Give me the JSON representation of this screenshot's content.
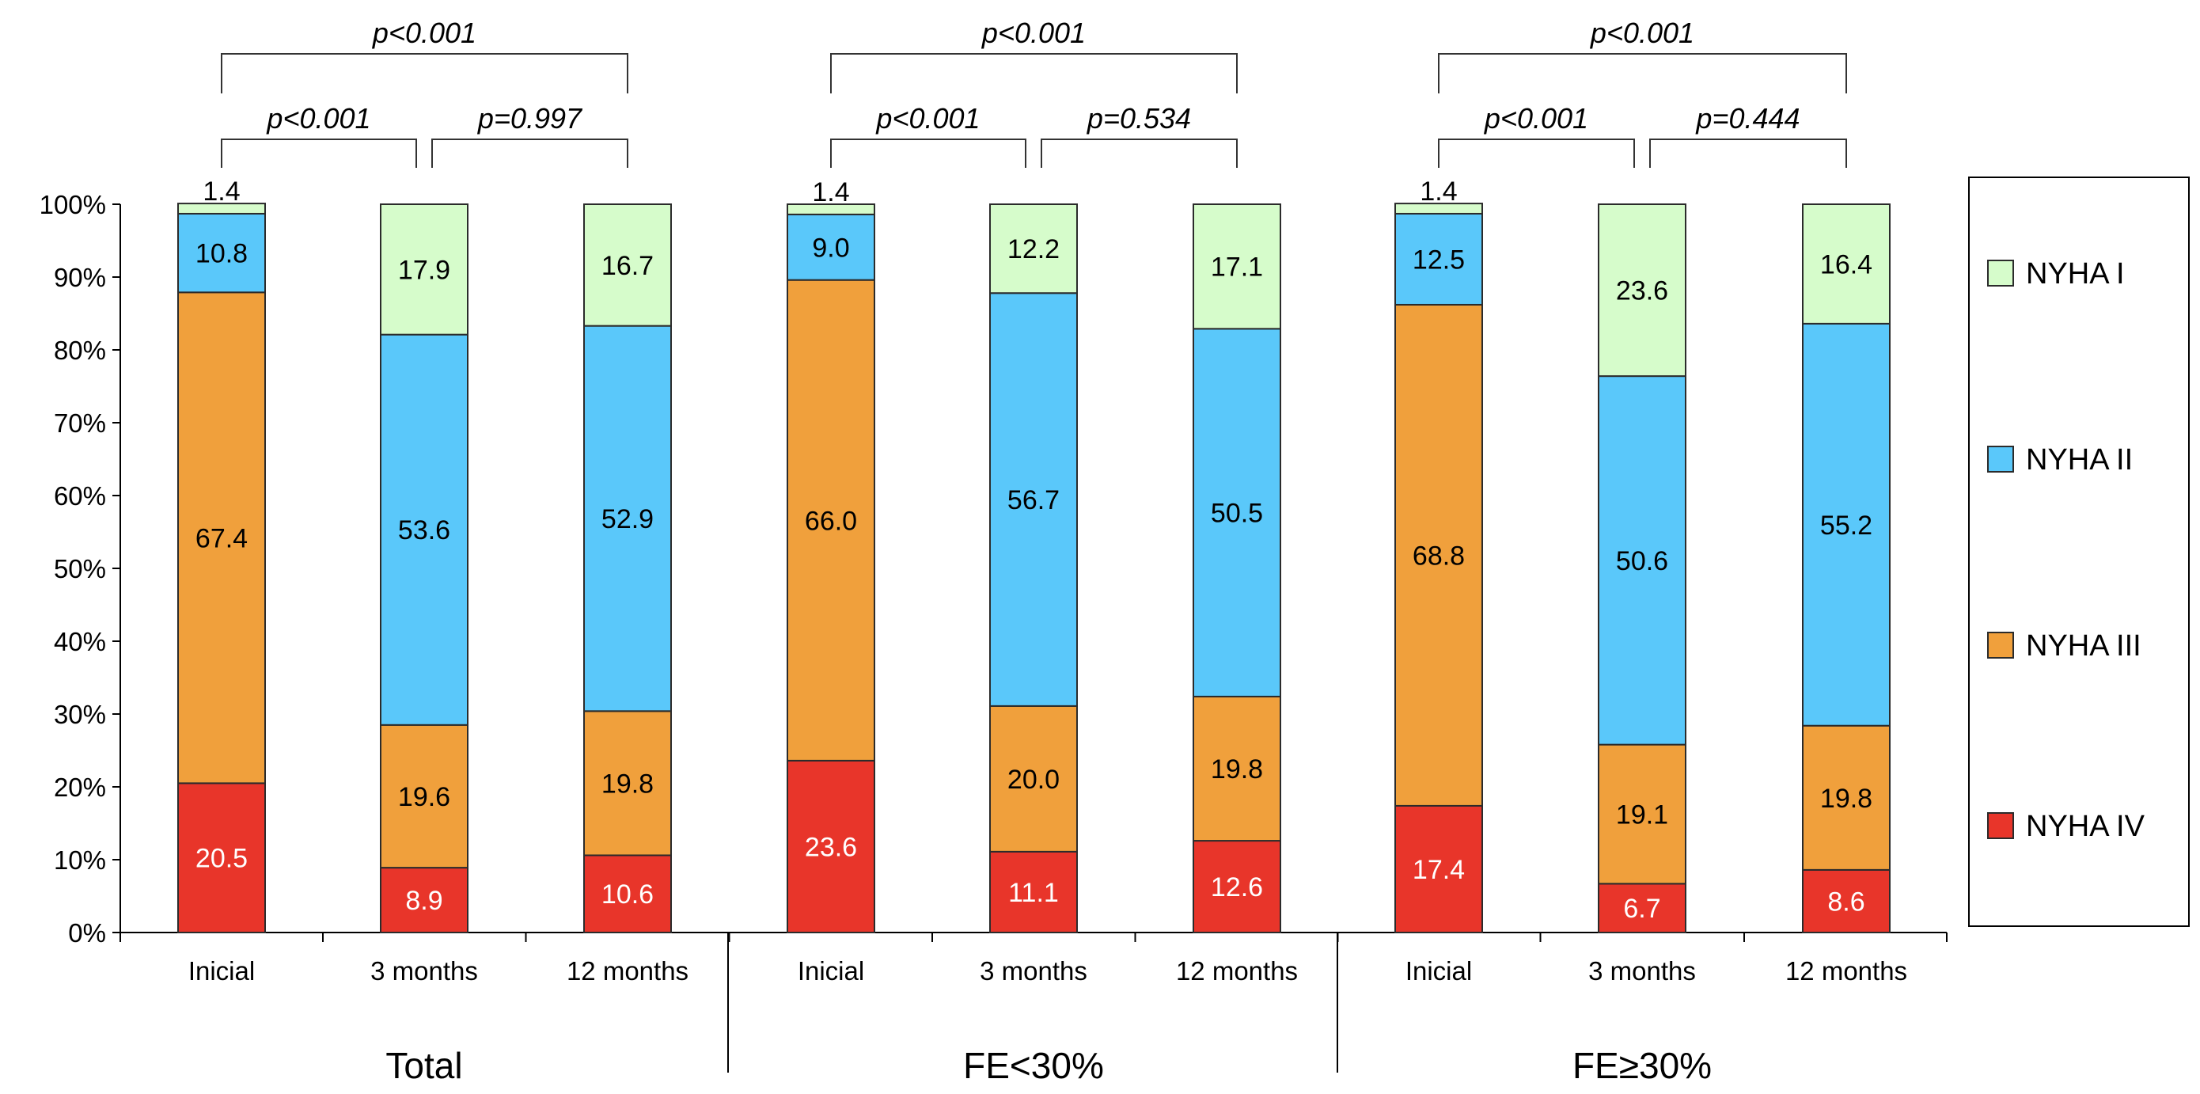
{
  "chart_data": {
    "type": "bar",
    "stacked": true,
    "ylim": [
      0,
      100
    ],
    "yticks": [
      "0%",
      "10%",
      "20%",
      "30%",
      "40%",
      "50%",
      "60%",
      "70%",
      "80%",
      "90%",
      "100%"
    ],
    "grid": false,
    "legend_position": "right",
    "categories": [
      "Inicial",
      "3 months",
      "12 months",
      "Inicial",
      "3 months",
      "12 months",
      "Inicial",
      "3 months",
      "12 months"
    ],
    "groups": [
      "Total",
      "FE<30%",
      "FE≥30%"
    ],
    "series": [
      {
        "name": "NYHA IV",
        "color": "#e8352a",
        "label_color": "#ffffff",
        "values": [
          20.5,
          8.9,
          10.6,
          23.6,
          11.1,
          12.6,
          17.4,
          6.7,
          8.6
        ]
      },
      {
        "name": "NYHA III",
        "color": "#f0a03c",
        "label_color": "#000000",
        "values": [
          67.4,
          19.6,
          19.8,
          66.0,
          20.0,
          19.8,
          68.8,
          19.1,
          19.8
        ]
      },
      {
        "name": "NYHA II",
        "color": "#5ac8fa",
        "label_color": "#000000",
        "values": [
          10.8,
          53.6,
          52.9,
          9.0,
          56.7,
          50.5,
          12.5,
          50.6,
          55.2
        ]
      },
      {
        "name": "NYHA I",
        "color": "#d6fccb",
        "label_color": "#000000",
        "values": [
          1.4,
          17.9,
          16.7,
          1.4,
          12.2,
          17.1,
          1.4,
          23.6,
          16.4
        ]
      }
    ],
    "legend_order": [
      "NYHA I",
      "NYHA II",
      "NYHA III",
      "NYHA IV"
    ],
    "annotations": [
      {
        "from": 0,
        "to": 2,
        "text": "p<0.001",
        "level": 2
      },
      {
        "from": 0,
        "to": 1,
        "text": "p<0.001",
        "level": 1
      },
      {
        "from": 1,
        "to": 2,
        "text": "p=0.997",
        "level": 1
      },
      {
        "from": 3,
        "to": 5,
        "text": "p<0.001",
        "level": 2
      },
      {
        "from": 3,
        "to": 4,
        "text": "p<0.001",
        "level": 1
      },
      {
        "from": 4,
        "to": 5,
        "text": "p=0.534",
        "level": 1
      },
      {
        "from": 6,
        "to": 8,
        "text": "p<0.001",
        "level": 2
      },
      {
        "from": 6,
        "to": 7,
        "text": "p<0.001",
        "level": 1
      },
      {
        "from": 7,
        "to": 8,
        "text": "p=0.444",
        "level": 1
      }
    ]
  }
}
